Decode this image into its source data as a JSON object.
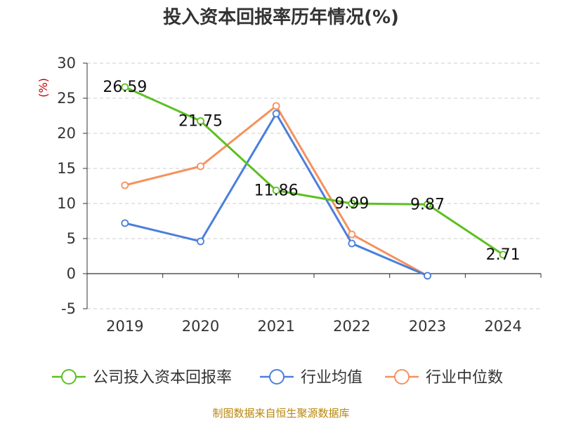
{
  "chart_data": {
    "type": "line",
    "title": "投入资本回报率历年情况(%)",
    "unit_label": "(%)",
    "categories": [
      "2019",
      "2020",
      "2021",
      "2022",
      "2023",
      "2024"
    ],
    "ylim": [
      -5,
      30
    ],
    "yticks": [
      30,
      25,
      20,
      15,
      10,
      5,
      0,
      -5
    ],
    "grid": true,
    "legend_position": "bottom",
    "series": [
      {
        "name": "公司投入资本回报率",
        "color": "#5cc022",
        "values": [
          26.59,
          21.75,
          11.86,
          9.99,
          9.87,
          2.71
        ],
        "labels": [
          "26.59",
          "21.75",
          "11.86",
          "9.99",
          "9.87",
          "2.71"
        ]
      },
      {
        "name": "行业均值",
        "color": "#4a7fdc",
        "values": [
          7.2,
          4.6,
          22.8,
          4.3,
          -0.3,
          null
        ]
      },
      {
        "name": "行业中位数",
        "color": "#f5915c",
        "values": [
          12.6,
          15.3,
          23.9,
          5.6,
          -0.3,
          null
        ]
      }
    ],
    "source": "制图数据来自恒生聚源数据库"
  }
}
